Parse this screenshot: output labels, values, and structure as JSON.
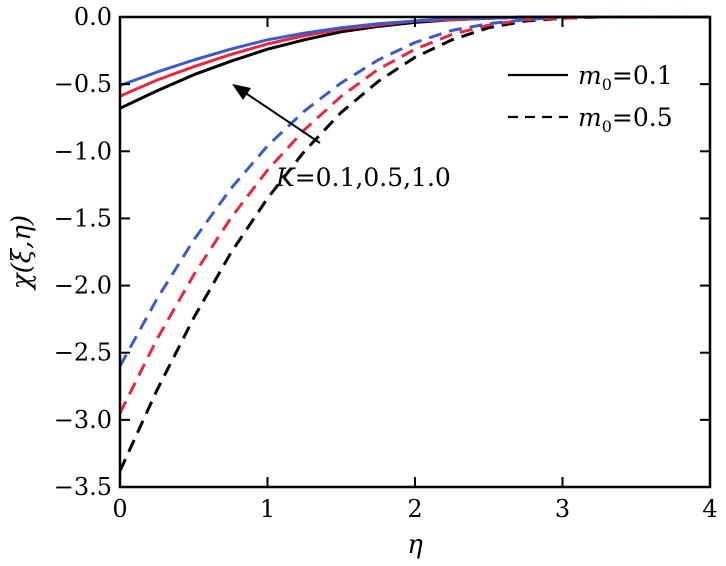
{
  "chart_data": {
    "type": "line",
    "xlabel": "η",
    "ylabel": "χ(ξ,η)",
    "xlim": [
      0,
      4
    ],
    "ylim": [
      -3.5,
      0.0
    ],
    "x_ticks": [
      0,
      1,
      2,
      3,
      4
    ],
    "x_tick_labels": [
      "0",
      "1",
      "2",
      "3",
      "4"
    ],
    "y_ticks": [
      0.0,
      -0.5,
      -1.0,
      -1.5,
      -2.0,
      -2.5,
      -3.0,
      -3.5
    ],
    "y_tick_labels": [
      "0.0",
      "−0.5",
      "−1.0",
      "−1.5",
      "−2.0",
      "−2.5",
      "−3.0",
      "−3.5"
    ],
    "grid": false,
    "legend_position": "top-right",
    "legend": [
      {
        "style": "solid",
        "label_var": "m",
        "label_sub": "0",
        "label_value": "=0.1"
      },
      {
        "style": "dashed",
        "label_var": "m",
        "label_sub": "0",
        "label_value": "=0.5"
      }
    ],
    "annotation": {
      "var": "K",
      "text": "=0.1,0.5,1.0",
      "arrow": "pointing toward increasing K"
    },
    "colors": {
      "K=0.1": "#000000",
      "K=0.5": "#e8283c",
      "K=1.0": "#3c5ac8"
    },
    "x": [
      0,
      0.25,
      0.5,
      0.75,
      1.0,
      1.25,
      1.5,
      1.75,
      2.0,
      2.25,
      2.5,
      2.75,
      3.0,
      3.25,
      3.5,
      3.75,
      4.0
    ],
    "series": [
      {
        "K": 0.1,
        "m0": 0.1,
        "style": "solid",
        "color": "#000000",
        "values": [
          -0.68,
          -0.55,
          -0.43,
          -0.33,
          -0.24,
          -0.17,
          -0.11,
          -0.07,
          -0.04,
          -0.02,
          -0.01,
          0.0,
          0.0,
          0.0,
          0.0,
          0.0,
          0.0
        ]
      },
      {
        "K": 0.5,
        "m0": 0.1,
        "style": "solid",
        "color": "#e8283c",
        "values": [
          -0.59,
          -0.47,
          -0.37,
          -0.28,
          -0.2,
          -0.14,
          -0.09,
          -0.06,
          -0.03,
          -0.02,
          -0.01,
          0.0,
          0.0,
          0.0,
          0.0,
          0.0,
          0.0
        ]
      },
      {
        "K": 1.0,
        "m0": 0.1,
        "style": "solid",
        "color": "#3c5ac8",
        "values": [
          -0.51,
          -0.41,
          -0.32,
          -0.24,
          -0.17,
          -0.12,
          -0.08,
          -0.05,
          -0.03,
          -0.01,
          -0.01,
          0.0,
          0.0,
          0.0,
          0.0,
          0.0,
          0.0
        ]
      },
      {
        "K": 0.1,
        "m0": 0.5,
        "style": "dashed",
        "color": "#000000",
        "values": [
          -3.38,
          -2.78,
          -2.24,
          -1.76,
          -1.35,
          -1.0,
          -0.71,
          -0.48,
          -0.3,
          -0.17,
          -0.08,
          -0.03,
          -0.01,
          0.0,
          0.0,
          0.0,
          0.0
        ]
      },
      {
        "K": 0.5,
        "m0": 0.5,
        "style": "dashed",
        "color": "#e8283c",
        "values": [
          -2.95,
          -2.4,
          -1.92,
          -1.5,
          -1.14,
          -0.84,
          -0.59,
          -0.39,
          -0.24,
          -0.13,
          -0.06,
          -0.02,
          -0.01,
          0.0,
          0.0,
          0.0,
          0.0
        ]
      },
      {
        "K": 1.0,
        "m0": 0.5,
        "style": "dashed",
        "color": "#3c5ac8",
        "values": [
          -2.6,
          -2.1,
          -1.66,
          -1.28,
          -0.96,
          -0.7,
          -0.49,
          -0.32,
          -0.19,
          -0.1,
          -0.05,
          -0.02,
          0.0,
          0.0,
          0.0,
          0.0,
          0.0
        ]
      }
    ]
  }
}
